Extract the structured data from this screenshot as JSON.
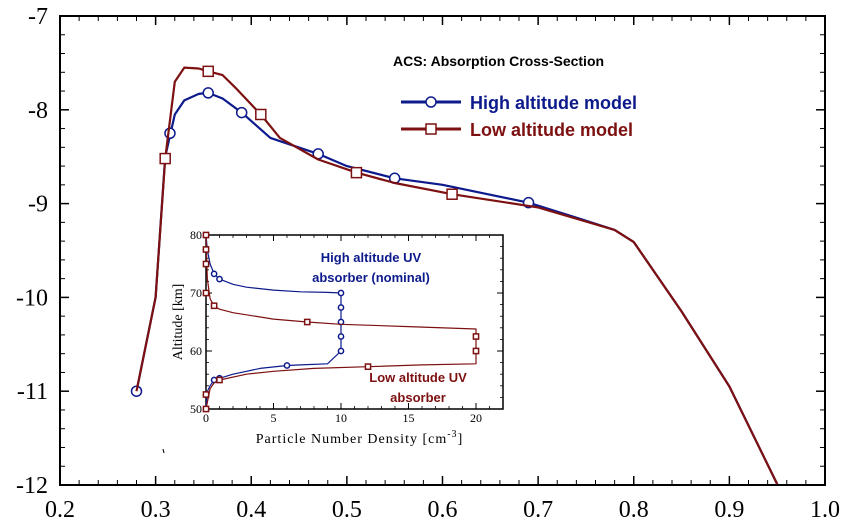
{
  "chart_data": [
    {
      "type": "line",
      "title": "ACS: Absorption Cross-Section",
      "xlabel": "",
      "ylabel": "",
      "xlim": [
        0.2,
        1.0
      ],
      "ylim": [
        -12,
        -7
      ],
      "x_ticks": [
        "0.2",
        "0.3",
        "0.4",
        "0.5",
        "0.6",
        "0.7",
        "0.8",
        "0.9",
        "1.0"
      ],
      "y_ticks": [
        "-7",
        "-8",
        "-9",
        "-10",
        "-11",
        "-12"
      ],
      "grid": false,
      "legend_position": "top-right",
      "series": [
        {
          "name": "High altitude model",
          "color": "#0d1a8c",
          "marker": "circle",
          "x": [
            0.28,
            0.3,
            0.31,
            0.32,
            0.33,
            0.345,
            0.355,
            0.37,
            0.39,
            0.42,
            0.47,
            0.5,
            0.55,
            0.6,
            0.69,
            0.74,
            0.78,
            0.8,
            0.85,
            0.9,
            0.95
          ],
          "y": [
            -11.0,
            -10.0,
            -8.5,
            -8.05,
            -7.9,
            -7.83,
            -7.82,
            -7.88,
            -8.03,
            -8.3,
            -8.47,
            -8.6,
            -8.73,
            -8.8,
            -8.99,
            -9.15,
            -9.28,
            -9.41,
            -10.15,
            -10.95,
            -11.99
          ],
          "marker_points": [
            [
              0.28,
              -11.0
            ],
            [
              0.315,
              -8.25
            ],
            [
              0.355,
              -7.82
            ],
            [
              0.39,
              -8.03
            ],
            [
              0.47,
              -8.47
            ],
            [
              0.55,
              -8.73
            ],
            [
              0.69,
              -8.99
            ]
          ]
        },
        {
          "name": "Low altitude model",
          "color": "#7d1010",
          "marker": "square",
          "x": [
            0.28,
            0.3,
            0.31,
            0.32,
            0.33,
            0.345,
            0.355,
            0.37,
            0.385,
            0.41,
            0.43,
            0.47,
            0.51,
            0.55,
            0.61,
            0.7,
            0.78,
            0.8,
            0.85,
            0.9,
            0.95
          ],
          "y": [
            -11.0,
            -10.0,
            -8.52,
            -7.7,
            -7.55,
            -7.56,
            -7.59,
            -7.63,
            -7.78,
            -8.05,
            -8.3,
            -8.53,
            -8.67,
            -8.78,
            -8.9,
            -9.04,
            -9.28,
            -9.41,
            -10.15,
            -10.95,
            -11.99
          ],
          "marker_points": [
            [
              0.31,
              -8.52
            ],
            [
              0.355,
              -7.59
            ],
            [
              0.41,
              -8.05
            ],
            [
              0.51,
              -8.67
            ],
            [
              0.61,
              -8.9
            ]
          ]
        }
      ]
    },
    {
      "type": "line",
      "title": "",
      "xlabel": "Particle Number Density [cm^-3]",
      "ylabel": "Altitude [km]",
      "xlim": [
        0,
        22
      ],
      "ylim": [
        50,
        80
      ],
      "x_ticks": [
        "0",
        "5",
        "10",
        "15",
        "20"
      ],
      "y_ticks": [
        "50",
        "60",
        "70",
        "80"
      ],
      "annotations": [
        {
          "lines": [
            "High altitude UV",
            "absorber (nominal)"
          ],
          "color": "#0d1a8c"
        },
        {
          "lines": [
            "Low altitude UV",
            "absorber"
          ],
          "color": "#7d1010"
        }
      ],
      "series": [
        {
          "name": "High altitude UV absorber (nominal)",
          "color": "#0d1a8c",
          "marker": "circle",
          "x": [
            0,
            0.1,
            0.3,
            0.6,
            1.0,
            2.0,
            3.0,
            5.0,
            7.0,
            9.0,
            10,
            10,
            10,
            10,
            10,
            9.0,
            7.0,
            6.0,
            4.0,
            2.0,
            1.0,
            0.6,
            0.3,
            0.1,
            0
          ],
          "y": [
            80,
            77.5,
            75.0,
            73.3,
            72.4,
            71.5,
            71.0,
            70.5,
            70.2,
            70.1,
            70,
            67.5,
            65,
            62.5,
            60,
            57.8,
            57.6,
            57.5,
            57.0,
            56.0,
            55.3,
            55.0,
            54.0,
            53.0,
            50
          ],
          "marker_points": [
            [
              0,
              77.5
            ],
            [
              0.6,
              73.3
            ],
            [
              1.0,
              72.4
            ],
            [
              10,
              70
            ],
            [
              10,
              67.5
            ],
            [
              10,
              65
            ],
            [
              10,
              62.5
            ],
            [
              10,
              60
            ],
            [
              6.0,
              57.5
            ],
            [
              1.0,
              55.3
            ],
            [
              0.6,
              55.0
            ],
            [
              0,
              52.5
            ]
          ]
        },
        {
          "name": "Low altitude UV absorber",
          "color": "#7d1010",
          "marker": "square",
          "x": [
            0,
            0.1,
            0.3,
            0.6,
            1.0,
            2.0,
            5.0,
            7.5,
            10,
            15,
            20,
            20,
            20,
            20,
            16,
            12,
            8,
            5,
            3,
            1.0,
            0.6,
            0.3,
            0
          ],
          "y": [
            80,
            72.5,
            69.0,
            67.8,
            67.2,
            66.6,
            65.5,
            65.0,
            64.6,
            64.2,
            63.8,
            62.5,
            60,
            57.8,
            57.6,
            57.3,
            57.0,
            56.5,
            56.0,
            55.0,
            54.5,
            53.5,
            50
          ],
          "marker_points": [
            [
              0,
              80
            ],
            [
              0,
              77.5
            ],
            [
              0,
              75
            ],
            [
              0,
              70
            ],
            [
              0.6,
              67.8
            ],
            [
              7.5,
              65.0
            ],
            [
              20,
              62.5
            ],
            [
              20,
              60
            ],
            [
              12,
              57.3
            ],
            [
              1.0,
              55.0
            ],
            [
              0,
              52.5
            ],
            [
              0,
              50
            ]
          ]
        }
      ]
    }
  ]
}
